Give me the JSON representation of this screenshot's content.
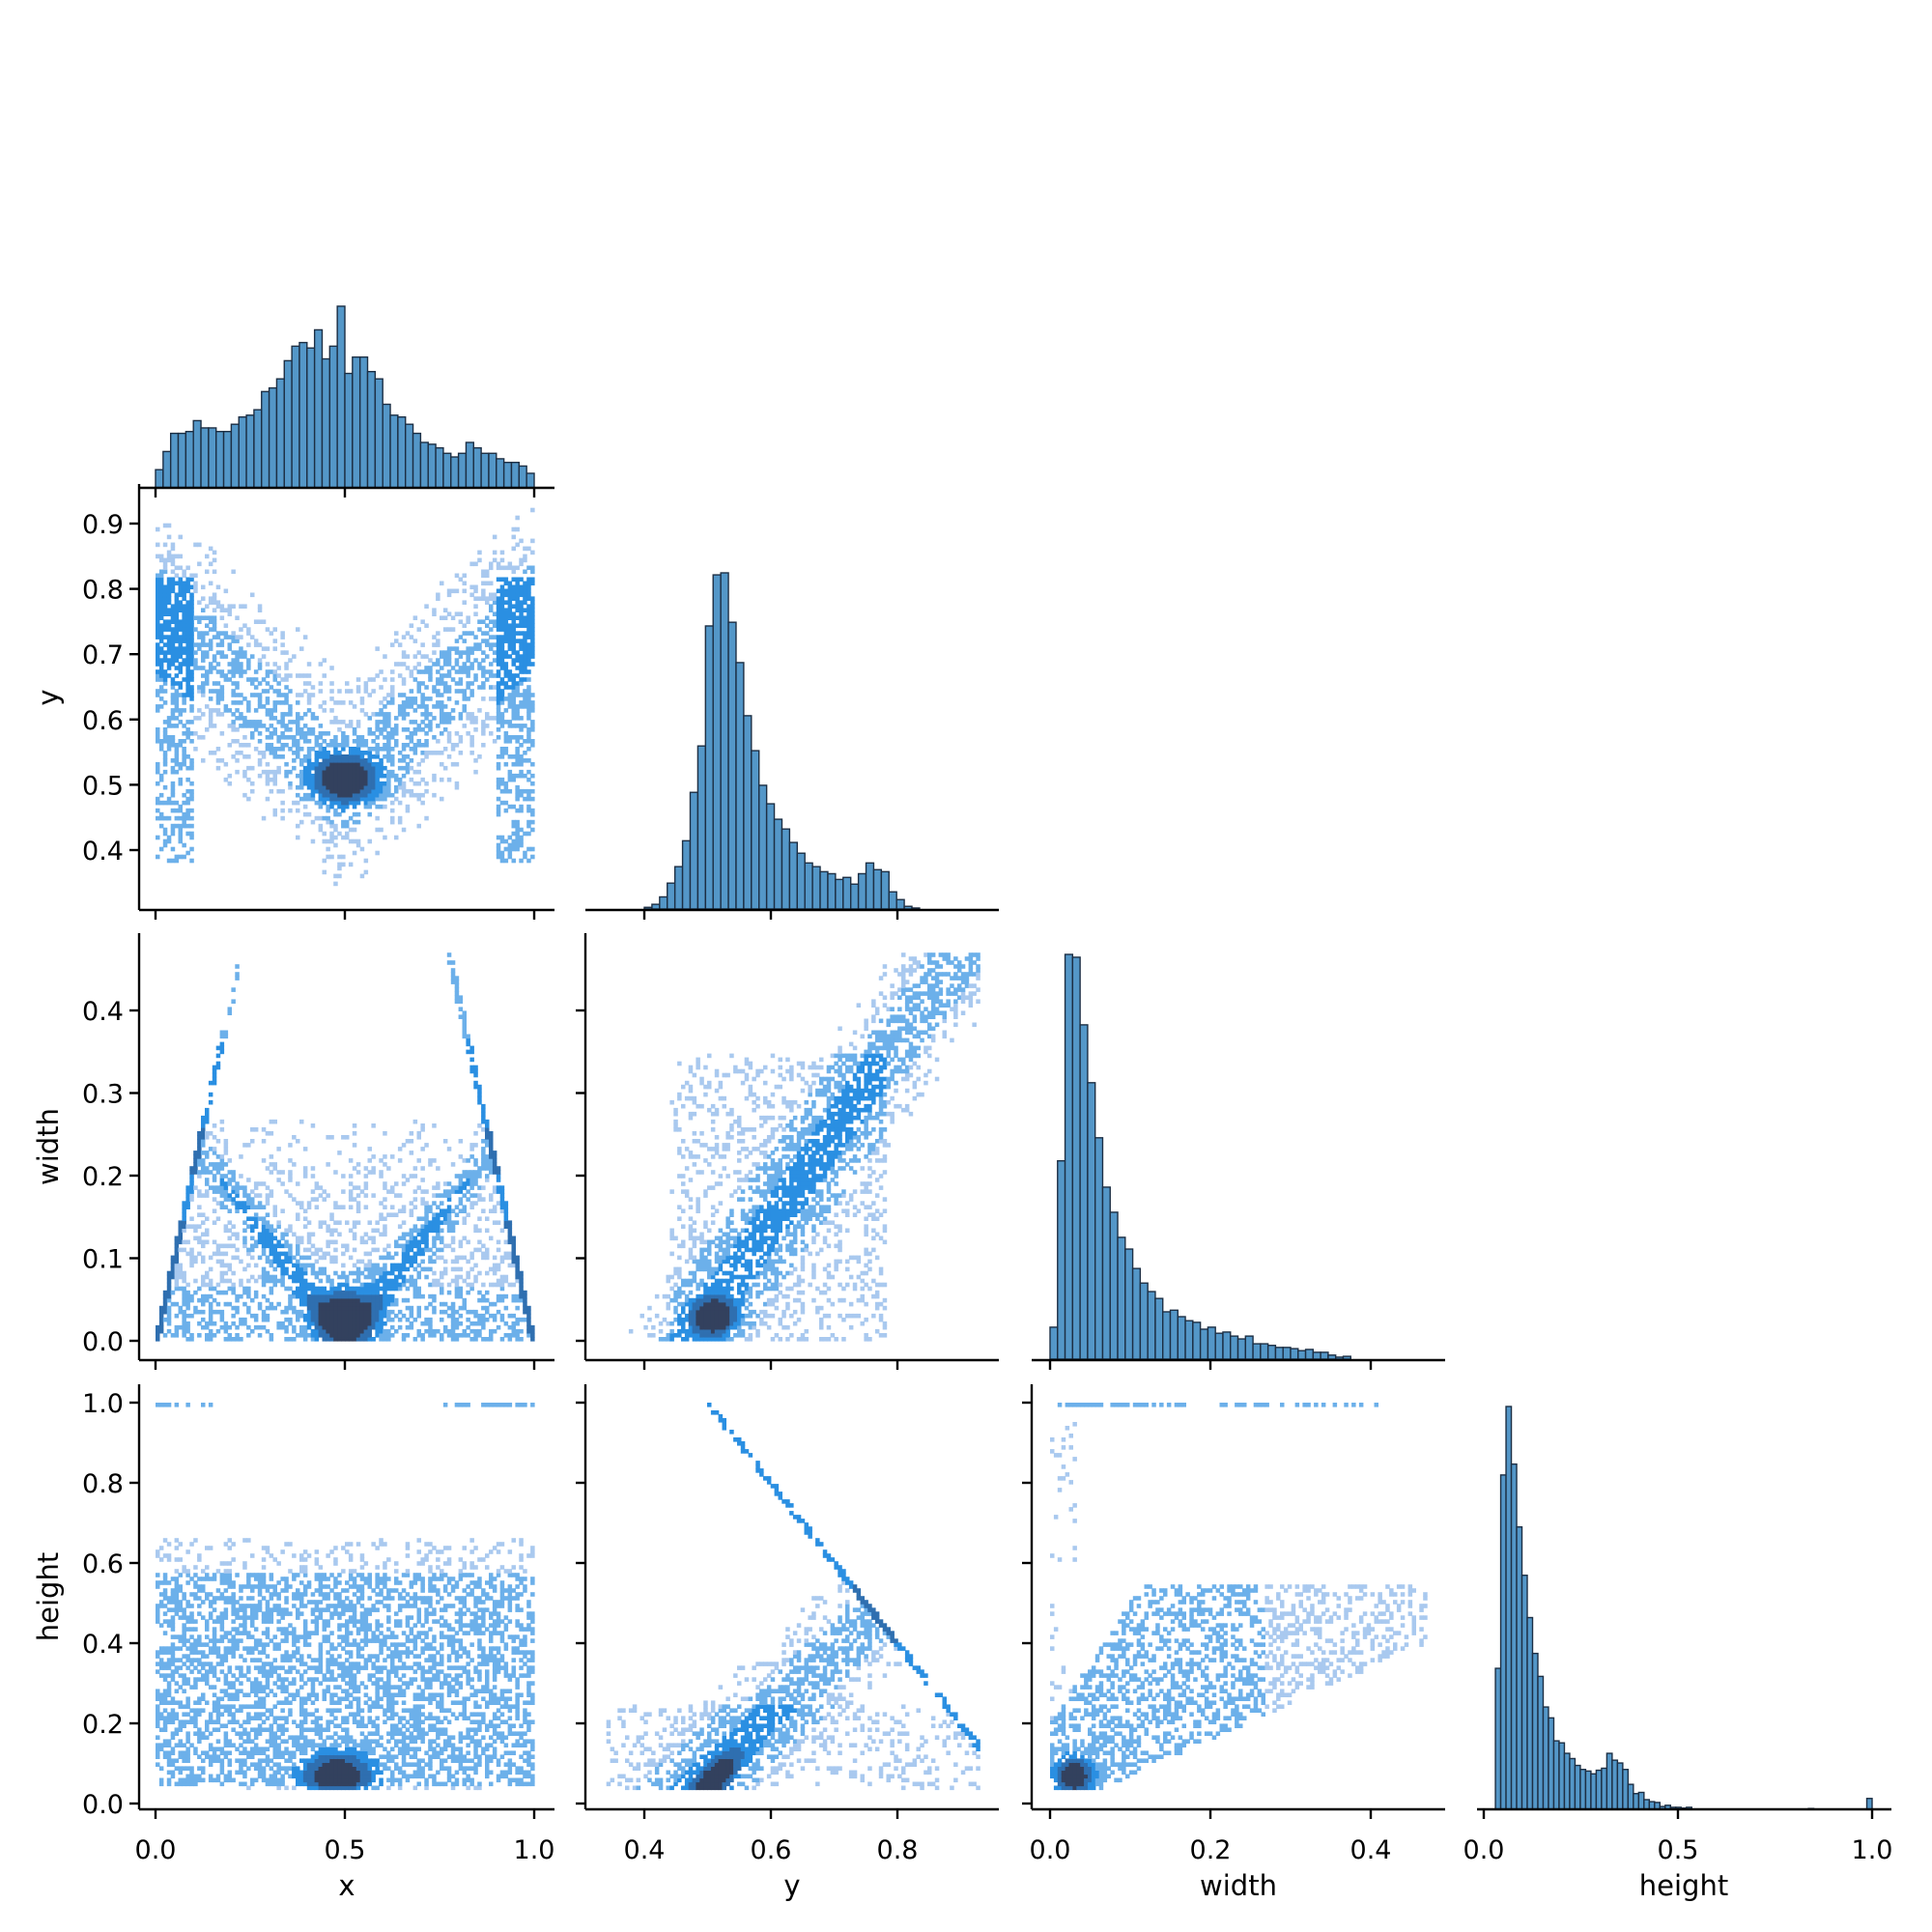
{
  "chart_data": {
    "type": "pairplot",
    "description": "Seaborn corner pairplot (lower triangle) of x, y, width, height: histograms on the diagonal, 2D histogram heatmaps off-diagonal",
    "variables": [
      "x",
      "y",
      "width",
      "height"
    ],
    "colors": {
      "hist_bar": "#5497c8",
      "hist_edge": "#1d2f44",
      "heat_light": "#a9c9ef",
      "heat_mid": "#6cb0ea",
      "heat_bright": "#2a8fe2",
      "heat_dark": "#33415e"
    },
    "axes": {
      "x": {
        "label": "x",
        "range": [
          -0.05,
          1.05
        ],
        "ticks": [
          0.0,
          0.5,
          1.0
        ],
        "tick_labels": [
          "0.0",
          "0.5",
          "1.0"
        ]
      },
      "y": {
        "label": "y",
        "range": [
          0.31,
          0.97
        ],
        "ticks": [
          0.4,
          0.6,
          0.8
        ],
        "tick_labels": [
          "0.4",
          "0.6",
          "0.8"
        ],
        "row_ticks": [
          0.4,
          0.5,
          0.6,
          0.7,
          0.8,
          0.9
        ],
        "row_tick_labels": [
          "0.4",
          "0.5",
          "0.6",
          "0.7",
          "0.8",
          "0.9"
        ]
      },
      "width": {
        "label": "width",
        "range": [
          -0.025,
          0.49
        ],
        "ticks": [
          0.0,
          0.2,
          0.4
        ],
        "tick_labels": [
          "0.0",
          "0.2",
          "0.4"
        ],
        "row_ticks": [
          0.0,
          0.1,
          0.2,
          0.3,
          0.4
        ],
        "row_tick_labels": [
          "0.0",
          "0.1",
          "0.2",
          "0.3",
          "0.4"
        ]
      },
      "height": {
        "label": "height",
        "range": [
          -0.015,
          1.05
        ],
        "ticks": [
          0.0,
          0.5,
          1.0
        ],
        "tick_labels": [
          "0.0",
          "0.5",
          "1.0"
        ],
        "row_ticks": [
          0.0,
          0.2,
          0.4,
          0.6,
          0.8,
          1.0
        ],
        "row_tick_labels": [
          "0.0",
          "0.2",
          "0.4",
          "0.6",
          "0.8",
          "1.0"
        ]
      }
    },
    "histograms": {
      "x": {
        "bin_start": 0.0,
        "bin_end": 1.0,
        "relative_counts": [
          0.1,
          0.2,
          0.3,
          0.3,
          0.31,
          0.37,
          0.33,
          0.33,
          0.31,
          0.31,
          0.35,
          0.39,
          0.4,
          0.43,
          0.53,
          0.55,
          0.6,
          0.7,
          0.78,
          0.8,
          0.77,
          0.87,
          0.71,
          0.78,
          1.0,
          0.63,
          0.72,
          0.72,
          0.64,
          0.6,
          0.46,
          0.4,
          0.39,
          0.35,
          0.3,
          0.25,
          0.24,
          0.22,
          0.19,
          0.17,
          0.19,
          0.25,
          0.22,
          0.19,
          0.19,
          0.16,
          0.14,
          0.14,
          0.12,
          0.08
        ]
      },
      "y": {
        "bin_start": 0.4,
        "bin_end": 0.835,
        "relative_counts": [
          0.005,
          0.014,
          0.036,
          0.077,
          0.126,
          0.203,
          0.347,
          0.485,
          0.842,
          0.994,
          1.0,
          0.853,
          0.733,
          0.575,
          0.471,
          0.368,
          0.313,
          0.267,
          0.238,
          0.198,
          0.166,
          0.137,
          0.126,
          0.111,
          0.105,
          0.088,
          0.094,
          0.074,
          0.105,
          0.137,
          0.117,
          0.111,
          0.051,
          0.028,
          0.008,
          0.003
        ]
      },
      "width": {
        "bin_start": 0.0,
        "bin_end": 0.375,
        "relative_counts": [
          0.079,
          0.49,
          1.0,
          0.993,
          0.826,
          0.683,
          0.547,
          0.425,
          0.363,
          0.301,
          0.272,
          0.224,
          0.188,
          0.167,
          0.15,
          0.117,
          0.121,
          0.105,
          0.095,
          0.091,
          0.074,
          0.079,
          0.064,
          0.067,
          0.057,
          0.05,
          0.057,
          0.038,
          0.038,
          0.034,
          0.029,
          0.029,
          0.026,
          0.021,
          0.024,
          0.017,
          0.017,
          0.01,
          0.005,
          0.007
        ]
      },
      "height": {
        "bin_start": 0.03,
        "bin_end": 1.0,
        "relative_counts": [
          0.35,
          0.83,
          1.0,
          0.857,
          0.701,
          0.581,
          0.476,
          0.387,
          0.33,
          0.254,
          0.227,
          0.17,
          0.165,
          0.139,
          0.126,
          0.109,
          0.099,
          0.095,
          0.088,
          0.097,
          0.102,
          0.139,
          0.122,
          0.115,
          0.099,
          0.062,
          0.039,
          0.042,
          0.024,
          0.019,
          0.017,
          0.007,
          0.01,
          0.005,
          0.005,
          0.003,
          0.005,
          0,
          0,
          0,
          0,
          0,
          0,
          0,
          0,
          0,
          0,
          0,
          0,
          0,
          0,
          0,
          0,
          0,
          0,
          0,
          0,
          0,
          0,
          0.002,
          0,
          0,
          0,
          0,
          0,
          0,
          0,
          0,
          0,
          0,
          0.027
        ],
        "notes": "small spike at height = 1.0"
      }
    },
    "heatmaps": {
      "x_vs_y": "V/butterfly shape; dense dark core around x=0.45-0.55, y=0.5; light bands up to y=0.82 at x edges",
      "x_vs_width": "inverted-V envelope with edges rising from (0,0) to width≈0.45 at x≈0.2 and x≈0.8; dense core at x≈0.5, width≈0.03",
      "y_vs_width": "positive correlation; dense core near y=0.5, width=0.03; spread up to y=0.8, width=0.35",
      "x_vs_height": "broad band height 0.05-0.6; dense core at x≈0.5, height≈0.07; sparse row at height=1.0 near edges",
      "y_vs_height": "triangular envelope with apex at y=0.5, height=1.0; diagonal edge down to y≈0.86, height≈0.28; dense core at y≈0.5, height≈0.07",
      "width_vs_height": "positive correlation fanning out; dense core near width≈0.02, height≈0.06; plateau at height≈0.5; row at height=1.0"
    }
  }
}
